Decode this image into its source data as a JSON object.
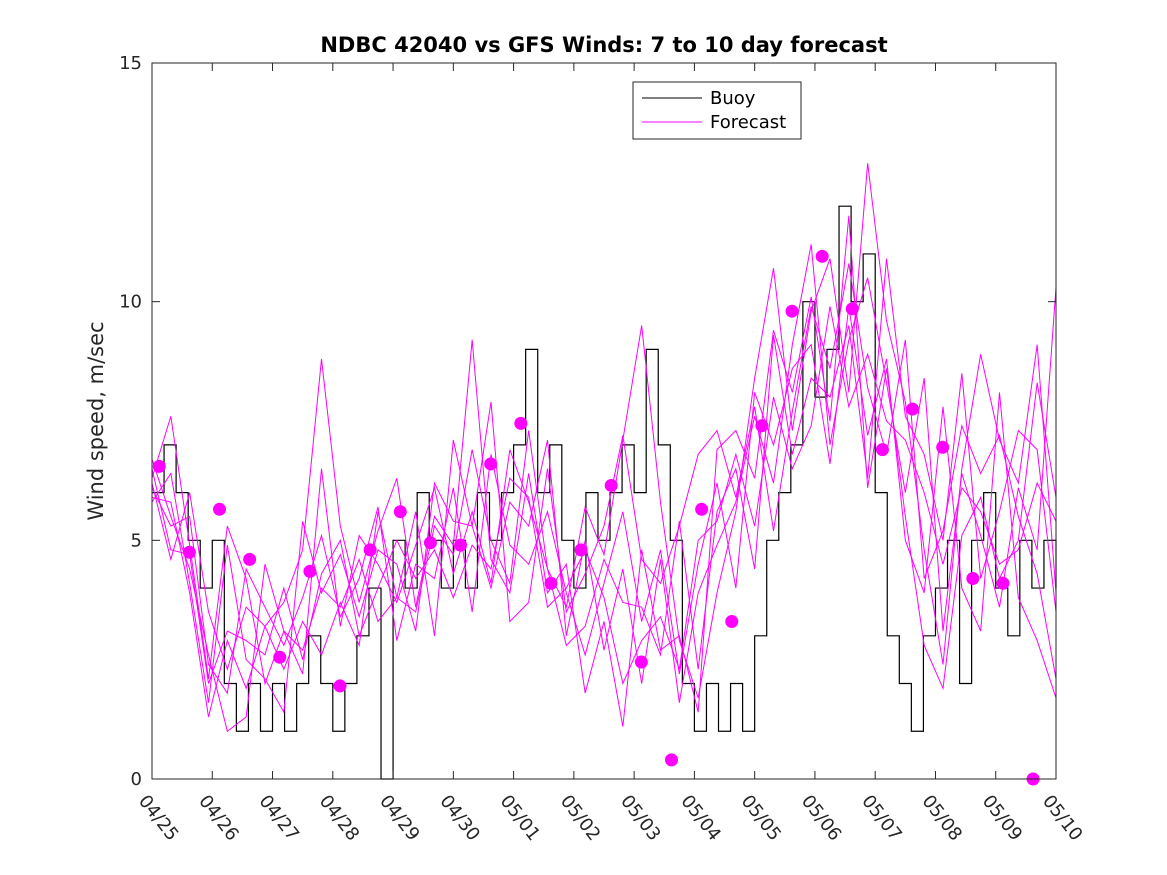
{
  "chart_data": {
    "type": "line",
    "title": "NDBC 42040 vs GFS Winds: 7 to 10 day forecast",
    "xlabel": "",
    "ylabel": "Wind speed, m/sec",
    "ylim": [
      0,
      15
    ],
    "yticks": [
      0,
      5,
      10,
      15
    ],
    "xlim_days": [
      0,
      15
    ],
    "xtick_labels": [
      "04/25",
      "04/26",
      "04/27",
      "04/28",
      "04/29",
      "04/30",
      "05/01",
      "05/02",
      "05/03",
      "05/04",
      "05/05",
      "05/06",
      "05/07",
      "05/08",
      "05/09",
      "05/10"
    ],
    "legend": {
      "position": "top-center",
      "entries": [
        "Buoy",
        "Forecast"
      ]
    },
    "colors": {
      "buoy": "#000000",
      "forecast": "#ff00ff"
    },
    "series": [
      {
        "name": "Buoy",
        "style": "step",
        "x": [
          0.0,
          0.2,
          0.4,
          0.6,
          0.8,
          1.0,
          1.2,
          1.4,
          1.6,
          1.8,
          2.0,
          2.2,
          2.4,
          2.6,
          2.8,
          3.0,
          3.2,
          3.4,
          3.6,
          3.8,
          4.0,
          4.2,
          4.4,
          4.6,
          4.8,
          5.0,
          5.2,
          5.4,
          5.6,
          5.8,
          6.0,
          6.2,
          6.4,
          6.6,
          6.8,
          7.0,
          7.2,
          7.4,
          7.6,
          7.8,
          8.0,
          8.2,
          8.4,
          8.6,
          8.8,
          9.0,
          9.2,
          9.4,
          9.6,
          9.8,
          10.0,
          10.2,
          10.4,
          10.6,
          10.8,
          11.0,
          11.2,
          11.4,
          11.6,
          11.8,
          12.0,
          12.2,
          12.4,
          12.6,
          12.8,
          13.0,
          13.2,
          13.4,
          13.6,
          13.8,
          14.0,
          14.2,
          14.4,
          14.6,
          14.8,
          15.0
        ],
        "values": [
          6,
          7,
          6,
          5,
          4,
          5,
          2,
          1,
          2,
          1,
          2,
          1,
          2,
          3,
          2,
          1,
          2,
          3,
          4,
          0,
          5,
          4,
          6,
          5,
          4,
          5,
          4,
          6,
          5,
          6,
          7,
          9,
          6,
          7,
          5,
          4,
          6,
          5,
          6,
          7,
          6,
          9,
          7,
          5,
          2,
          1,
          2,
          1,
          2,
          1,
          3,
          5,
          6,
          7,
          10,
          8,
          9,
          12,
          10,
          11,
          6,
          3,
          2,
          1,
          3,
          4,
          5,
          2,
          5,
          6,
          4,
          3,
          5,
          4,
          5,
          4
        ]
      },
      {
        "name": "Forecast",
        "values": [
          6.3,
          7.6,
          4.9,
          2.1,
          5.3,
          4.2,
          2.0,
          3.1,
          2.2,
          6.5,
          3.2,
          5.1,
          4.5,
          3.7,
          4.9,
          6.1,
          4.3,
          5.6,
          4.1,
          6.9,
          5.8,
          4.4,
          3.6,
          5.7,
          4.7,
          7.1,
          9.5,
          5.8,
          2.9,
          1.7,
          3.9,
          5.6,
          8.4,
          10.7,
          7.3,
          9.8,
          10.9,
          8.1,
          12.9,
          9.6,
          7.9,
          4.8,
          2.4,
          6.5,
          8.9,
          7.1,
          6.2,
          9.1,
          3.9
        ]
      },
      {
        "name": "",
        "values": [
          5.9,
          5.8,
          3.9,
          1.3,
          2.9,
          1.9,
          3.2,
          3.7,
          4.8,
          8.8,
          5.3,
          3.7,
          5.2,
          6.3,
          3.6,
          5.5,
          4.9,
          9.2,
          4.6,
          3.9,
          6.4,
          3.9,
          4.5,
          1.8,
          3.3,
          1.1,
          4.8,
          2.7,
          3.0,
          1.4,
          6.9,
          7.3,
          6.3,
          9.4,
          8.1,
          10.1,
          7.5,
          11.8,
          6.1,
          8.6,
          5.5,
          2.8,
          1.9,
          5.1,
          5.9,
          4.2,
          5.0,
          8.3,
          5.9
        ]
      },
      {
        "name": "",
        "values": [
          6.7,
          5.5,
          4.4,
          2.6,
          1.0,
          1.3,
          4.5,
          3.1,
          2.7,
          4.0,
          3.6,
          4.6,
          3.3,
          3.8,
          5.6,
          3.0,
          7.1,
          5.3,
          7.9,
          3.3,
          3.7,
          6.5,
          3.5,
          4.3,
          5.3,
          7.2,
          4.6,
          4.1,
          5.3,
          6.8,
          7.3,
          5.9,
          7.8,
          5.2,
          7.7,
          9.9,
          8.6,
          10.8,
          8.2,
          6.8,
          9.2,
          4.2,
          5.2,
          7.4,
          6.4,
          7.2,
          5.5,
          4.3,
          2.1
        ]
      },
      {
        "name": "",
        "values": [
          6.2,
          4.6,
          6.0,
          3.5,
          2.3,
          3.6,
          3.2,
          2.3,
          3.3,
          2.6,
          3.7,
          2.8,
          5.6,
          3.8,
          3.5,
          5.3,
          4.7,
          6.9,
          5.0,
          4.1,
          7.3,
          4.4,
          2.8,
          3.2,
          4.6,
          3.7,
          3.6,
          2.6,
          5.4,
          2.3,
          5.6,
          6.5,
          4.4,
          9.3,
          6.8,
          8.4,
          8.0,
          9.5,
          6.3,
          10.9,
          7.6,
          6.8,
          5.0,
          8.5,
          4.2,
          5.6,
          7.3,
          6.9,
          3.5
        ]
      },
      {
        "name": "",
        "values": [
          5.8,
          6.4,
          4.1,
          1.6,
          4.9,
          2.5,
          2.1,
          1.4,
          5.4,
          3.9,
          4.7,
          3.4,
          4.8,
          4.5,
          3.1,
          6.2,
          5.4,
          5.3,
          4.0,
          5.8,
          5.3,
          7.1,
          3.0,
          5.0,
          2.7,
          4.4,
          2.0,
          4.6,
          1.6,
          3.9,
          4.9,
          5.8,
          7.6,
          6.2,
          9.1,
          11.2,
          7.0,
          9.2,
          10.5,
          8.3,
          6.0,
          8.4,
          3.1,
          6.4,
          5.1,
          3.6,
          6.1,
          4.8,
          10.3
        ]
      },
      {
        "name": "",
        "values": [
          6.1,
          5.3,
          5.5,
          2.4,
          1.8,
          4.4,
          3.6,
          2.8,
          3.8,
          5.1,
          3.4,
          4.2,
          5.7,
          2.9,
          4.5,
          4.2,
          6.1,
          3.5,
          6.8,
          4.9,
          4.5,
          5.6,
          3.9,
          2.6,
          4.1,
          5.6,
          3.3,
          4.8,
          2.2,
          4.5,
          6.2,
          4.0,
          8.1,
          7.0,
          8.6,
          9.1,
          6.6,
          9.9,
          7.2,
          8.8,
          5.0,
          3.9,
          7.8,
          4.0,
          3.1,
          8.1,
          3.8,
          2.9,
          1.7
        ]
      },
      {
        "name": "",
        "values": [
          6.5,
          4.8,
          4.7,
          2.0,
          3.1,
          2.9,
          2.6,
          4.0,
          2.5,
          4.3,
          5.0,
          3.0,
          4.0,
          5.0,
          4.2,
          4.8,
          3.8,
          4.9,
          4.4,
          6.3,
          5.9,
          3.6,
          4.0,
          4.8,
          3.8,
          2.0,
          2.9,
          3.4,
          2.3,
          5.0,
          5.4,
          6.8,
          5.3,
          8.0,
          6.5,
          7.4,
          9.9,
          7.8,
          8.9,
          7.5,
          7.1,
          6.0,
          4.5,
          6.1,
          5.6,
          4.5,
          4.8,
          6.2,
          5.4
        ]
      }
    ],
    "markers": {
      "x": [
        0.12,
        0.62,
        1.12,
        1.62,
        2.12,
        2.62,
        3.12,
        3.62,
        4.12,
        4.62,
        5.12,
        5.62,
        6.12,
        6.62,
        7.12,
        7.62,
        8.12,
        8.62,
        9.12,
        9.62,
        10.12,
        10.62,
        11.12,
        11.62,
        12.12,
        12.62,
        13.12,
        13.62,
        14.12,
        14.62
      ],
      "y": [
        6.55,
        4.75,
        5.65,
        4.6,
        2.55,
        4.35,
        1.95,
        4.8,
        5.6,
        4.95,
        4.9,
        6.6,
        7.45,
        4.1,
        4.8,
        6.15,
        2.45,
        0.4,
        5.65,
        3.3,
        7.4,
        9.8,
        10.95,
        9.85,
        6.9,
        7.75,
        6.95,
        4.2,
        4.1,
        0
      ]
    }
  }
}
